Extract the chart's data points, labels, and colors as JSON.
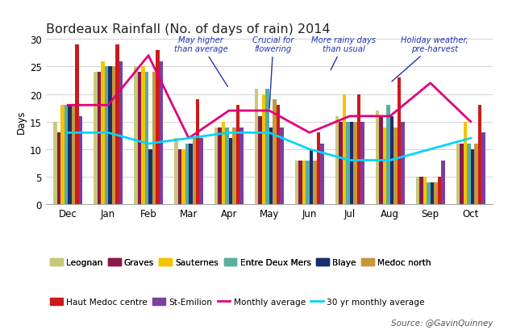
{
  "title": "Bordeaux Rainfall (No. of days of rain) 2014",
  "ylabel": "Days",
  "months": [
    "Dec",
    "Jan",
    "Feb",
    "Mar",
    "Apr",
    "May",
    "Jun",
    "Jul",
    "Aug",
    "Sep",
    "Oct"
  ],
  "bar_data": {
    "Leognan": [
      15,
      24,
      25,
      12,
      14,
      21,
      8,
      16,
      17,
      5,
      11
    ],
    "Graves": [
      13,
      24,
      24,
      10,
      14,
      16,
      8,
      15,
      16,
      5,
      11
    ],
    "Sauternes": [
      18,
      26,
      25,
      10,
      15,
      20,
      8,
      20,
      14,
      5,
      15
    ],
    "Entre Deux Mers": [
      18,
      25,
      24,
      11,
      14,
      21,
      8,
      15,
      18,
      4,
      11
    ],
    "Blaye": [
      18,
      25,
      10,
      11,
      12,
      14,
      10,
      15,
      16,
      4,
      10
    ],
    "Medoc north": [
      18,
      25,
      24,
      12,
      14,
      19,
      8,
      15,
      14,
      4,
      11
    ],
    "Haut Medoc centre": [
      29,
      29,
      28,
      19,
      18,
      18,
      13,
      20,
      23,
      5,
      18
    ],
    "St-Emilion": [
      16,
      26,
      26,
      12,
      14,
      14,
      11,
      15,
      15,
      8,
      13
    ]
  },
  "bar_colors": {
    "Leognan": "#c8c87a",
    "Graves": "#8b1a4a",
    "Sauternes": "#f5c400",
    "Entre Deux Mers": "#5aada0",
    "Blaye": "#1a2e6e",
    "Medoc north": "#c8963c",
    "Haut Medoc centre": "#cc1a1a",
    "St-Emilion": "#7b3fa0"
  },
  "monthly_avg": [
    18,
    18,
    27,
    12,
    17,
    17,
    13,
    16,
    16,
    22,
    15
  ],
  "avg_30yr": [
    13,
    13,
    11,
    12,
    13,
    13,
    10,
    8,
    8,
    10,
    12
  ],
  "ylim": [
    0,
    30
  ],
  "yticks": [
    0,
    5,
    10,
    15,
    20,
    25,
    30
  ],
  "source_text": "Source: @GavinQuinney",
  "background_color": "#ffffff",
  "legend_row1": [
    "Leognan",
    "Graves",
    "Sauternes",
    "Entre Deux Mers",
    "Blaye",
    "Medoc north"
  ],
  "legend_row2": [
    "Haut Medoc centre",
    "St-Emilion",
    "Monthly average",
    "30 yr monthly average"
  ]
}
